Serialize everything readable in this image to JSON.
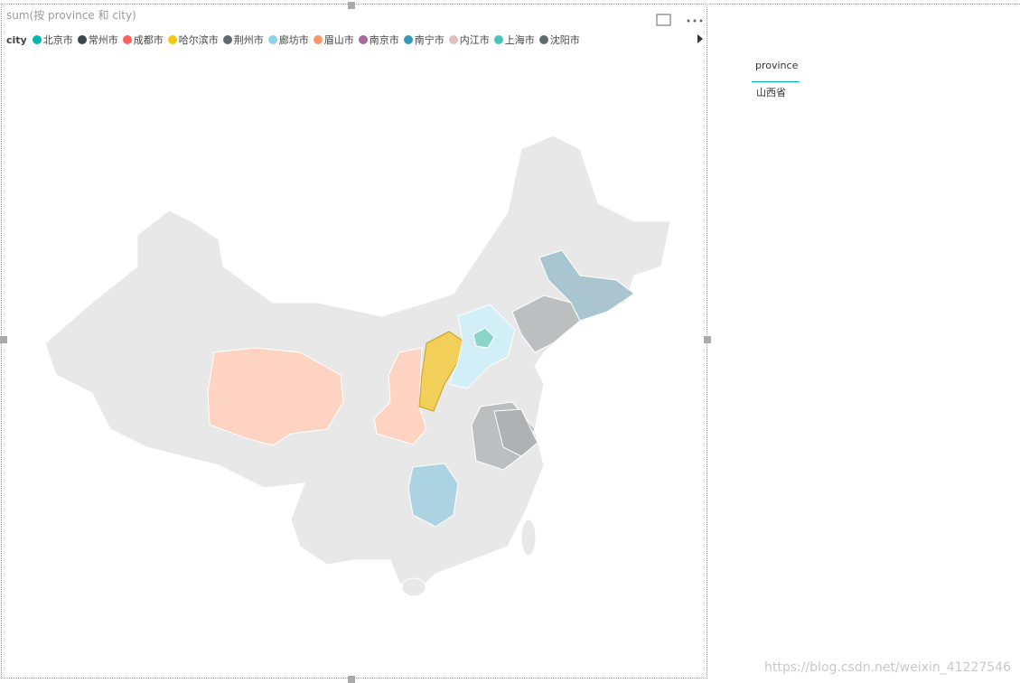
{
  "visual": {
    "title": "sum(按 province 和 city)",
    "legend_title": "city",
    "legend": [
      {
        "name": "北京市",
        "color": "#01b8aa"
      },
      {
        "name": "常州市",
        "color": "#374649"
      },
      {
        "name": "成都市",
        "color": "#fd625e"
      },
      {
        "name": "哈尔滨市",
        "color": "#f2c80f"
      },
      {
        "name": "荆州市",
        "color": "#5f6b6d"
      },
      {
        "name": "廊坊市",
        "color": "#8ad4eb"
      },
      {
        "name": "眉山市",
        "color": "#fe9666"
      },
      {
        "name": "南京市",
        "color": "#a66999"
      },
      {
        "name": "南宁市",
        "color": "#3599b8"
      },
      {
        "name": "内江市",
        "color": "#dfbfbf"
      },
      {
        "name": "上海市",
        "color": "#4ac5bb"
      },
      {
        "name": "沈阳市",
        "color": "#5f6b6d"
      }
    ]
  },
  "slicer": {
    "header": "province",
    "items": [
      "山西省"
    ]
  },
  "watermark": "https://blog.csdn.net/weixin_41227546"
}
